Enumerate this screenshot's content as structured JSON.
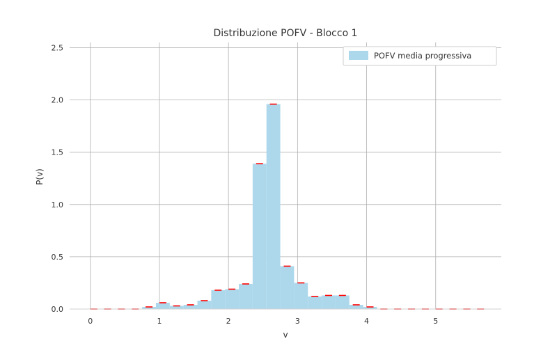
{
  "chart_data": {
    "type": "bar",
    "title": "Distribuzione POFV - Blocco 1",
    "xlabel": "v",
    "ylabel": "P(v)",
    "xlim": [
      -0.3,
      5.95
    ],
    "ylim": [
      0,
      2.55
    ],
    "x_ticks": [
      0,
      1,
      2,
      3,
      4,
      5
    ],
    "y_ticks": [
      0.0,
      0.5,
      1.0,
      1.5,
      2.0,
      2.5
    ],
    "x_tick_labels": [
      "0",
      "1",
      "2",
      "3",
      "4",
      "5"
    ],
    "y_tick_labels": [
      "0.0",
      "0.5",
      "1.0",
      "1.5",
      "2.0",
      "2.5"
    ],
    "grid": true,
    "legend_position": "top-right",
    "bin_width": 0.2,
    "series": [
      {
        "name": "POFV media progressiva",
        "color": "#add8ec",
        "error_color": "#ff0000",
        "x": [
          0.05,
          0.25,
          0.45,
          0.65,
          0.85,
          1.05,
          1.25,
          1.45,
          1.65,
          1.85,
          2.05,
          2.25,
          2.45,
          2.65,
          2.85,
          3.05,
          3.25,
          3.45,
          3.65,
          3.85,
          4.05,
          4.25,
          4.45,
          4.65,
          4.85,
          5.05,
          5.25,
          5.45,
          5.65
        ],
        "values": [
          0.0,
          0.0,
          0.0,
          0.0,
          0.02,
          0.06,
          0.03,
          0.04,
          0.08,
          0.18,
          0.19,
          0.24,
          1.39,
          1.96,
          0.41,
          0.25,
          0.12,
          0.13,
          0.13,
          0.04,
          0.02,
          0.0,
          0.0,
          0.0,
          0.0,
          0.0,
          0.0,
          0.0,
          0.0
        ]
      }
    ]
  }
}
